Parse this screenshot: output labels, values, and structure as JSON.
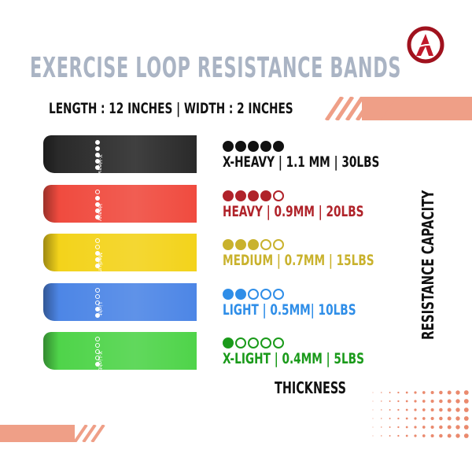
{
  "title": "EXERCISE LOOP RESISTANCE BANDS",
  "subtitle": "LENGTH : 12 INCHES | WIDTH : 2 INCHES",
  "logo_letter": "A",
  "brand_colors": {
    "accent": "#ef9f87",
    "logo": "#a0121e",
    "title": "#aab4c4"
  },
  "axis_vertical": "RESISTANCE CAPACITY",
  "axis_horizontal": "THICKNESS",
  "bands": [
    {
      "band_label": "X-Heavy",
      "level": 5,
      "spec": "X-HEAVY | 1.1 MM | 30LBS",
      "color": "#111111",
      "band_color": "#2a2a2a"
    },
    {
      "band_label": "Heavy",
      "level": 4,
      "spec": "HEAVY | 0.9MM | 20LBS",
      "color": "#b0232a",
      "band_color": "#f04b3f"
    },
    {
      "band_label": "Medium",
      "level": 3,
      "spec": "MEDIUM | 0.7MM | 15LBS",
      "color": "#c9b22d",
      "band_color": "#f3d31b"
    },
    {
      "band_label": "Light",
      "level": 2,
      "spec": "LIGHT | 0.5MM| 10LBS",
      "color": "#2f8ee8",
      "band_color": "#4d86e6"
    },
    {
      "band_label": "X-Light",
      "level": 1,
      "spec": "X-LIGHT | 0.4MM | 5LBS",
      "color": "#1a9a1a",
      "band_color": "#4fd44a"
    }
  ]
}
